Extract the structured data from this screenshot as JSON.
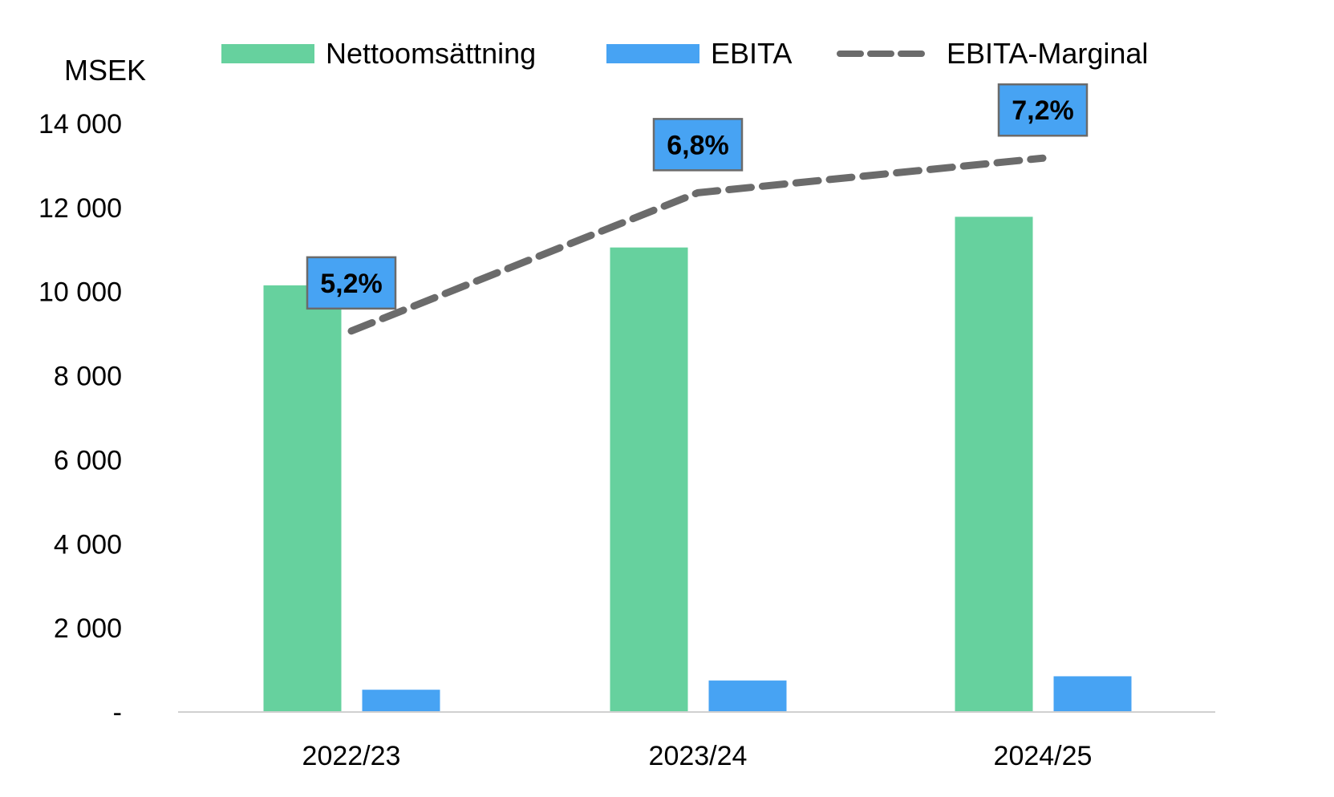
{
  "chart_data": {
    "type": "bar",
    "unit_label": "MSEK",
    "categories": [
      "2022/23",
      "2023/24",
      "2024/25"
    ],
    "ylim": [
      0,
      14000
    ],
    "yticks": [
      {
        "value": 0,
        "label": "-"
      },
      {
        "value": 2000,
        "label": "2 000"
      },
      {
        "value": 4000,
        "label": "4 000"
      },
      {
        "value": 6000,
        "label": "6 000"
      },
      {
        "value": 8000,
        "label": "8 000"
      },
      {
        "value": 10000,
        "label": "10 000"
      },
      {
        "value": 12000,
        "label": "12 000"
      },
      {
        "value": 14000,
        "label": "14 000"
      }
    ],
    "grid": false,
    "legend_position": "top",
    "series": [
      {
        "name": "Nettoomsättning",
        "kind": "bar",
        "color": "#66d19e",
        "values": [
          10150,
          11050,
          11780
        ]
      },
      {
        "name": "EBITA",
        "kind": "bar",
        "color": "#47a3f3",
        "values": [
          530,
          750,
          850
        ]
      },
      {
        "name": "EBITA-Marginal",
        "kind": "line",
        "style": "dashed",
        "color": "#6b6b6b",
        "values": [
          5.2,
          6.8,
          7.2
        ],
        "labels": [
          "5,2%",
          "6,8%",
          "7,2%"
        ]
      }
    ],
    "label_box_color": "#47a3f3"
  }
}
